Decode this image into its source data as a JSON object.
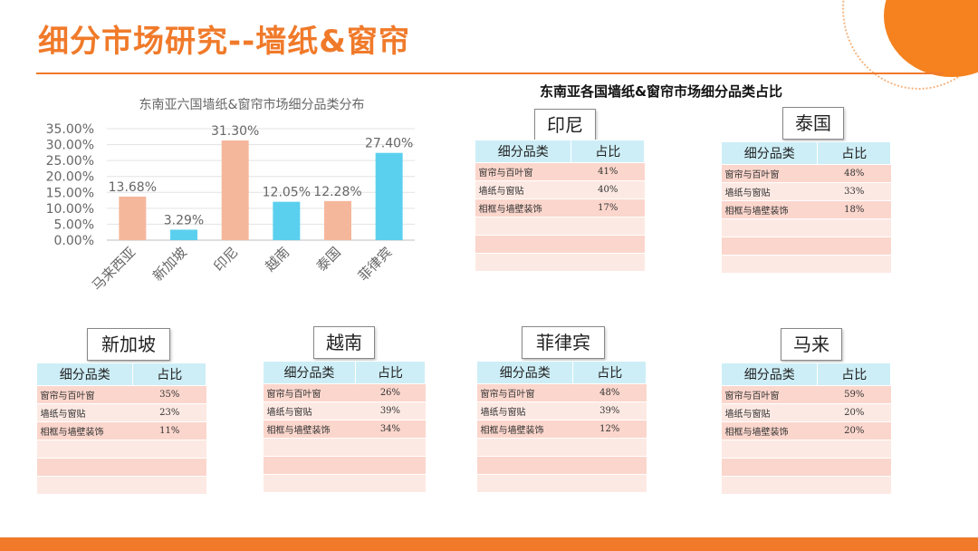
{
  "title": "细分市场研究--墙纸&窗帘",
  "tables_heading": "东南亚各国墙纸&窗帘市场细分品类占比",
  "chart_data": {
    "type": "bar",
    "title": "东南亚六国墙纸&窗帘市场细分品类分布",
    "categories": [
      "马来西亚",
      "新加坡",
      "印尼",
      "越南",
      "泰国",
      "菲律宾"
    ],
    "values": [
      13.68,
      3.29,
      31.3,
      12.05,
      12.28,
      27.4
    ],
    "data_labels": [
      "13.68%",
      "3.29%",
      "31.30%",
      "12.05%",
      "12.28%",
      "27.40%"
    ],
    "bar_colors": [
      "#f5b79c",
      "#5bd0ee",
      "#f5b79c",
      "#5bd0ee",
      "#f5b79c",
      "#5bd0ee"
    ],
    "yticks": [
      "0.00%",
      "5.00%",
      "10.00%",
      "15.00%",
      "20.00%",
      "25.00%",
      "30.00%",
      "35.00%"
    ],
    "ylim": [
      0,
      35
    ],
    "grid": true,
    "legend": "none"
  },
  "tables": [
    {
      "country": "印尼",
      "header": [
        "细分品类",
        "占比"
      ],
      "rows": [
        [
          "窗帘与百叶窗",
          "41%"
        ],
        [
          "墙纸与窗贴",
          "40%"
        ],
        [
          "相框与墙壁装饰",
          "17%"
        ],
        [
          "",
          ""
        ],
        [
          "",
          ""
        ],
        [
          "",
          ""
        ]
      ]
    },
    {
      "country": "泰国",
      "header": [
        "细分品类",
        "占比"
      ],
      "rows": [
        [
          "窗帘与百叶窗",
          "48%"
        ],
        [
          "墙纸与窗贴",
          "33%"
        ],
        [
          "相框与墙壁装饰",
          "18%"
        ],
        [
          "",
          ""
        ],
        [
          "",
          ""
        ],
        [
          "",
          ""
        ]
      ]
    },
    {
      "country": "新加坡",
      "header": [
        "细分品类",
        "占比"
      ],
      "rows": [
        [
          "窗帘与百叶窗",
          "35%"
        ],
        [
          "墙纸与窗贴",
          "23%"
        ],
        [
          "相框与墙壁装饰",
          "11%"
        ],
        [
          "",
          ""
        ],
        [
          "",
          ""
        ],
        [
          "",
          ""
        ]
      ]
    },
    {
      "country": "越南",
      "header": [
        "细分品类",
        "占比"
      ],
      "rows": [
        [
          "窗帘与百叶窗",
          "26%"
        ],
        [
          "墙纸与窗贴",
          "39%"
        ],
        [
          "相框与墙壁装饰",
          "34%"
        ],
        [
          "",
          ""
        ],
        [
          "",
          ""
        ],
        [
          "",
          ""
        ]
      ]
    },
    {
      "country": "菲律宾",
      "header": [
        "细分品类",
        "占比"
      ],
      "rows": [
        [
          "窗帘与百叶窗",
          "48%"
        ],
        [
          "墙纸与窗贴",
          "39%"
        ],
        [
          "相框与墙壁装饰",
          "12%"
        ],
        [
          "",
          ""
        ],
        [
          "",
          ""
        ],
        [
          "",
          ""
        ]
      ]
    },
    {
      "country": "马来",
      "header": [
        "细分品类",
        "占比"
      ],
      "rows": [
        [
          "窗帘与百叶窗",
          "59%"
        ],
        [
          "墙纸与窗贴",
          "20%"
        ],
        [
          "相框与墙壁装饰",
          "20%"
        ],
        [
          "",
          ""
        ],
        [
          "",
          ""
        ],
        [
          "",
          ""
        ]
      ]
    }
  ]
}
